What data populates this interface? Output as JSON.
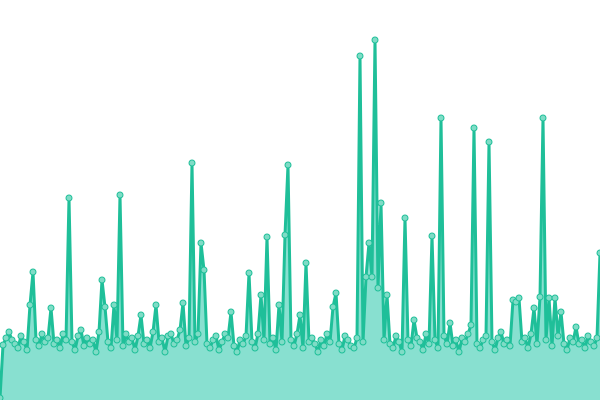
{
  "chart_data": {
    "type": "area",
    "title": "",
    "xlabel": "",
    "ylabel": "",
    "axes_visible": false,
    "grid": false,
    "legend": "none",
    "markers": true,
    "ylim": [
      0,
      400
    ],
    "colors": {
      "line": "#1fbf99",
      "fill": "#88e0d0",
      "marker_fill": "#7fdcc6",
      "marker_stroke": "#1fbf99"
    },
    "series": [
      {
        "values": [
          2,
          55,
          62,
          68,
          60,
          56,
          52,
          64,
          58,
          50,
          95,
          128,
          60,
          54,
          66,
          58,
          62,
          92,
          56,
          60,
          52,
          66,
          60,
          202,
          58,
          50,
          64,
          70,
          54,
          62,
          56,
          60,
          48,
          68,
          120,
          93,
          58,
          52,
          95,
          60,
          205,
          54,
          66,
          58,
          62,
          50,
          64,
          85,
          56,
          60,
          52,
          68,
          95,
          58,
          62,
          48,
          64,
          66,
          56,
          60,
          70,
          97,
          54,
          62,
          237,
          58,
          66,
          157,
          130,
          56,
          52,
          60,
          64,
          50,
          58,
          66,
          62,
          88,
          54,
          48,
          60,
          56,
          64,
          127,
          58,
          52,
          66,
          105,
          60,
          163,
          56,
          62,
          50,
          95,
          58,
          165,
          235,
          60,
          54,
          66,
          85,
          52,
          137,
          58,
          62,
          56,
          48,
          60,
          54,
          66,
          58,
          93,
          107,
          56,
          50,
          64,
          60,
          54,
          52,
          62,
          344,
          58,
          123,
          157,
          123,
          360,
          112,
          197,
          60,
          105,
          56,
          52,
          64,
          58,
          48,
          182,
          60,
          54,
          80,
          62,
          58,
          50,
          66,
          56,
          164,
          60,
          52,
          282,
          64,
          56,
          77,
          54,
          60,
          48,
          62,
          58,
          66,
          75,
          272,
          56,
          52,
          60,
          64,
          258,
          58,
          50,
          62,
          68,
          56,
          60,
          54,
          100,
          98,
          102,
          58,
          62,
          52,
          66,
          92,
          56,
          103,
          282,
          60,
          102,
          54,
          102,
          64,
          88,
          56,
          50,
          62,
          58,
          73,
          56,
          60,
          52,
          64,
          58,
          54,
          62,
          147
        ]
      }
    ]
  }
}
